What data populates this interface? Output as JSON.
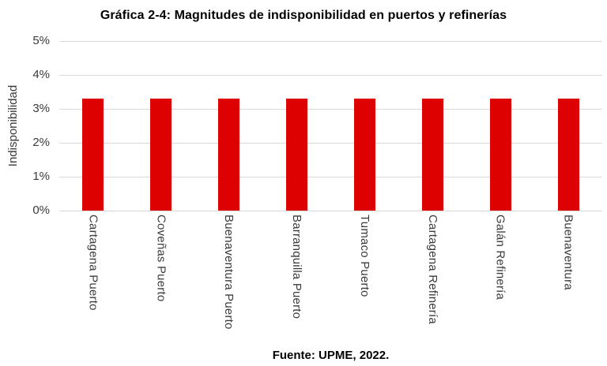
{
  "title": "Gráfica 2-4: Magnitudes de indisponibilidad en puertos y refinerías",
  "source": "Fuente: UPME, 2022.",
  "chart_data": {
    "type": "bar",
    "title": "Gráfica 2-4: Magnitudes de indisponibilidad en puertos y refinerías",
    "categories": [
      "Cartagena Puerto",
      "Coveñas Puerto",
      "Buenaventura Puerto",
      "Barranquilla Puerto",
      "Tumaco Puerto",
      "Cartagena Refinería",
      "Galán Refinería",
      "Buenaventura"
    ],
    "values": [
      3.3,
      3.3,
      3.3,
      3.3,
      3.3,
      3.3,
      3.3,
      3.3
    ],
    "xlabel": "",
    "ylabel": "Indisponibilidad",
    "ylim": [
      0,
      5
    ],
    "ytick_step": 1,
    "ytick_labels": [
      "0%",
      "1%",
      "2%",
      "3%",
      "4%",
      "5%"
    ],
    "grid": true,
    "legend": false,
    "bar_color": "#de0101",
    "gridline_color": "#d9d9d9",
    "caption": "Fuente: UPME, 2022."
  }
}
